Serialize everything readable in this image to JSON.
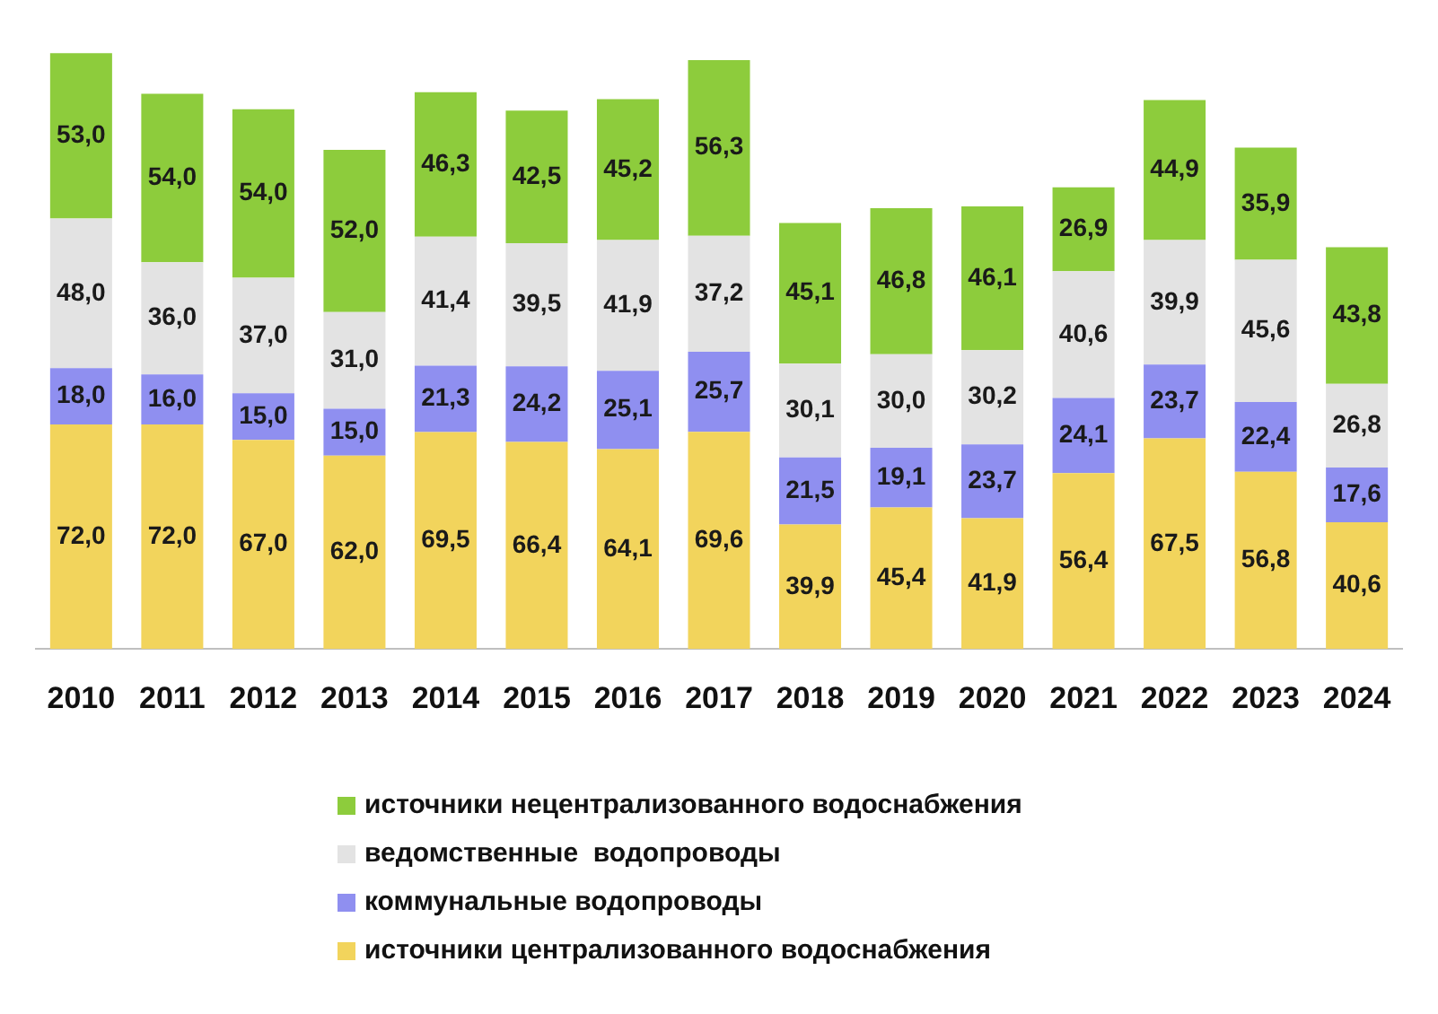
{
  "chart_data": {
    "type": "bar",
    "stacked": true,
    "legend": "bottom",
    "grid": false,
    "categories": [
      "2010",
      "2011",
      "2012",
      "2013",
      "2014",
      "2015",
      "2016",
      "2017",
      "2018",
      "2019",
      "2020",
      "2021",
      "2022",
      "2023",
      "2024"
    ],
    "series": [
      {
        "name": "источники централизованного водоснабжения",
        "color": "#f2d45c",
        "values": [
          72.0,
          72.0,
          67.0,
          62.0,
          69.5,
          66.4,
          64.1,
          69.6,
          39.9,
          45.4,
          41.9,
          56.4,
          67.5,
          56.8,
          40.6
        ],
        "value_labels": [
          "72,0",
          "72,0",
          "67,0",
          "62,0",
          "69,5",
          "66,4",
          "64,1",
          "69,6",
          "39,9",
          "45,4",
          "41,9",
          "56,4",
          "67,5",
          "56,8",
          "40,6"
        ]
      },
      {
        "name": "коммунальные водопроводы",
        "color": "#8f8ff0",
        "values": [
          18.0,
          16.0,
          15.0,
          15.0,
          21.3,
          24.2,
          25.1,
          25.7,
          21.5,
          19.1,
          23.7,
          24.1,
          23.7,
          22.4,
          17.6
        ],
        "value_labels": [
          "18,0",
          "16,0",
          "15,0",
          "15,0",
          "21,3",
          "24,2",
          "25,1",
          "25,7",
          "21,5",
          "19,1",
          "23,7",
          "24,1",
          "23,7",
          "22,4",
          "17,6"
        ]
      },
      {
        "name": "ведомственные  водопроводы",
        "color": "#e3e3e3",
        "values": [
          48.0,
          36.0,
          37.0,
          31.0,
          41.4,
          39.5,
          41.9,
          37.2,
          30.1,
          30.0,
          30.2,
          40.6,
          39.9,
          45.6,
          26.8
        ],
        "value_labels": [
          "48,0",
          "36,0",
          "37,0",
          "31,0",
          "41,4",
          "39,5",
          "41,9",
          "37,2",
          "30,1",
          "30,0",
          "30,2",
          "40,6",
          "39,9",
          "45,6",
          "26,8"
        ]
      },
      {
        "name": "источники нецентрализованного водоснабжения",
        "color": "#8dcc3c",
        "values": [
          53.0,
          54.0,
          54.0,
          52.0,
          46.3,
          42.5,
          45.2,
          56.3,
          45.1,
          46.8,
          46.1,
          26.9,
          44.9,
          35.9,
          43.8
        ],
        "value_labels": [
          "53,0",
          "54,0",
          "54,0",
          "52,0",
          "46,3",
          "42,5",
          "45,2",
          "56,3",
          "45,1",
          "46,8",
          "46,1",
          "26,9",
          "44,9",
          "35,9",
          "43,8"
        ]
      }
    ]
  }
}
